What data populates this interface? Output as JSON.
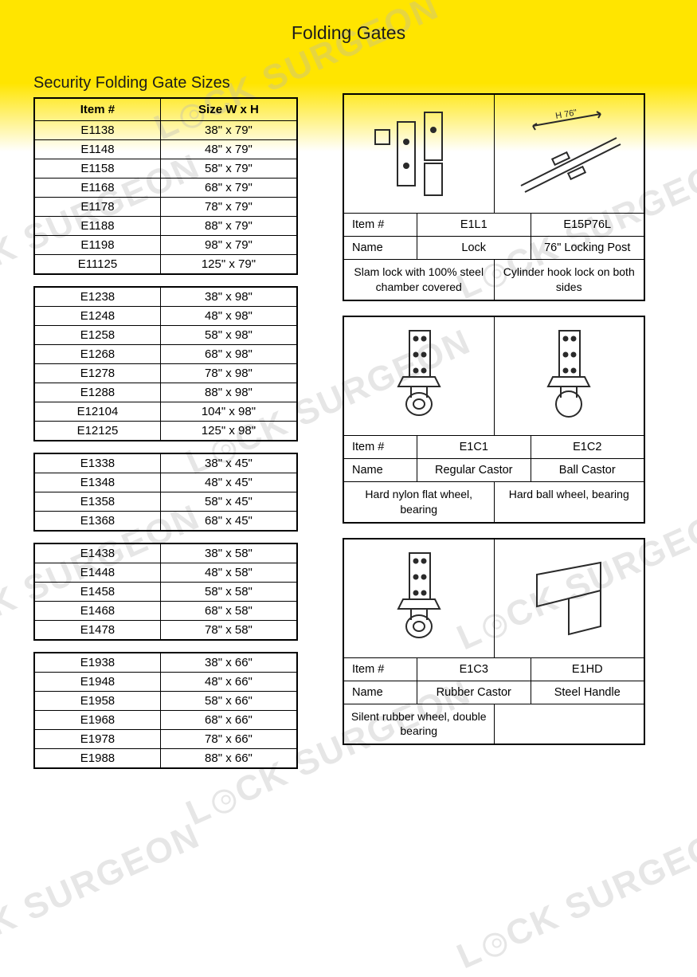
{
  "page_title": "Folding Gates",
  "section_title": "Security Folding Gate Sizes",
  "colors": {
    "header_yellow": "#ffe500",
    "background": "#ffffff",
    "border": "#000000",
    "text": "#1c1c1c",
    "watermark": "#b8b8b8"
  },
  "size_table_header": {
    "item": "Item #",
    "size": "Size W x H"
  },
  "size_groups": [
    {
      "rows": [
        {
          "item": "E1138",
          "size": "38\" x 79\""
        },
        {
          "item": "E1148",
          "size": "48\" x 79\""
        },
        {
          "item": "E1158",
          "size": "58\" x 79\""
        },
        {
          "item": "E1168",
          "size": "68\" x 79\""
        },
        {
          "item": "E1178",
          "size": "78\" x 79\""
        },
        {
          "item": "E1188",
          "size": "88\" x 79\""
        },
        {
          "item": "E1198",
          "size": "98\" x 79\""
        },
        {
          "item": "E11125",
          "size": "125\" x 79\""
        }
      ]
    },
    {
      "rows": [
        {
          "item": "E1238",
          "size": "38\" x 98\""
        },
        {
          "item": "E1248",
          "size": "48\" x 98\""
        },
        {
          "item": "E1258",
          "size": "58\" x 98\""
        },
        {
          "item": "E1268",
          "size": "68\" x 98\""
        },
        {
          "item": "E1278",
          "size": "78\" x 98\""
        },
        {
          "item": "E1288",
          "size": "88\" x 98\""
        },
        {
          "item": "E12104",
          "size": "104\" x 98\""
        },
        {
          "item": "E12125",
          "size": "125\" x 98\""
        }
      ]
    },
    {
      "rows": [
        {
          "item": "E1338",
          "size": "38\" x 45\""
        },
        {
          "item": "E1348",
          "size": "48\" x 45\""
        },
        {
          "item": "E1358",
          "size": "58\" x 45\""
        },
        {
          "item": "E1368",
          "size": "68\" x 45\""
        }
      ]
    },
    {
      "rows": [
        {
          "item": "E1438",
          "size": "38\" x 58\""
        },
        {
          "item": "E1448",
          "size": "48\" x 58\""
        },
        {
          "item": "E1458",
          "size": "58\" x 58\""
        },
        {
          "item": "E1468",
          "size": "68\" x 58\""
        },
        {
          "item": "E1478",
          "size": "78\" x 58\""
        }
      ]
    },
    {
      "rows": [
        {
          "item": "E1938",
          "size": "38\" x 66\""
        },
        {
          "item": "E1948",
          "size": "48\" x 66\""
        },
        {
          "item": "E1958",
          "size": "58\" x 66\""
        },
        {
          "item": "E1968",
          "size": "68\" x 66\""
        },
        {
          "item": "E1978",
          "size": "78\" x 66\""
        },
        {
          "item": "E1988",
          "size": "88\" x 66\""
        }
      ]
    }
  ],
  "acc_labels": {
    "item": "Item #",
    "name": "Name"
  },
  "accessories": [
    {
      "items": [
        "E1L1",
        "E15P76L"
      ],
      "names": [
        "Lock",
        "76\" Locking Post"
      ],
      "descs": [
        "Slam lock with 100% steel chamber covered",
        "Cylinder hook lock on both sides"
      ],
      "image_dim_label": "H 76\""
    },
    {
      "items": [
        "E1C1",
        "E1C2"
      ],
      "names": [
        "Regular Castor",
        "Ball Castor"
      ],
      "descs": [
        "Hard nylon flat wheel, bearing",
        "Hard ball wheel, bearing"
      ]
    },
    {
      "items": [
        "E1C3",
        "E1HD"
      ],
      "names": [
        "Rubber Castor",
        "Steel Handle"
      ],
      "descs": [
        "Silent rubber wheel, double bearing",
        ""
      ]
    }
  ],
  "watermark_text": "LOCK SURGEON"
}
